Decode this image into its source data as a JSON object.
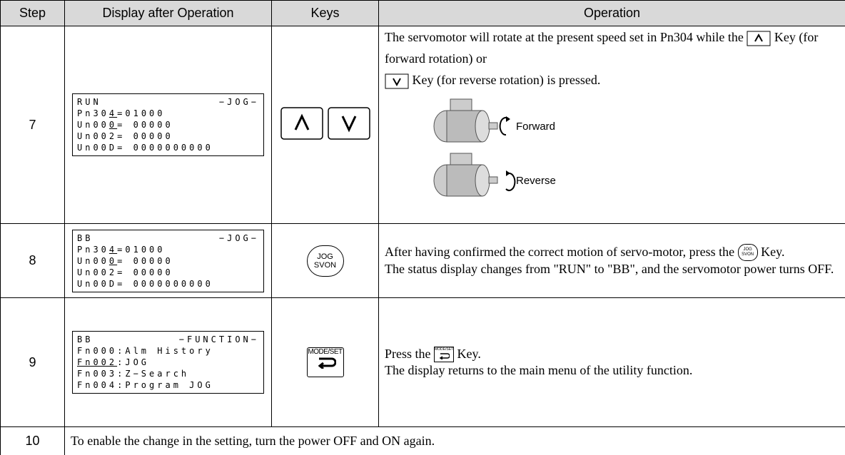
{
  "header": {
    "step": "Step",
    "display": "Display after Operation",
    "keys": "Keys",
    "operation": "Operation"
  },
  "rows": [
    {
      "step": "7",
      "display": {
        "status": "RUN",
        "mode": "−JOG−",
        "lines": [
          [
            "Pn30",
            {
              "u": "4"
            },
            "=01000"
          ],
          [
            "Un00",
            {
              "u": "0"
            },
            "= 00000"
          ],
          [
            "Un002= 00000"
          ],
          [
            "Un00D= 0000000000"
          ]
        ]
      },
      "operation": {
        "parts": [
          "The servomotor will rotate at the present speed set in Pn304 while the",
          "Key (for forward rotation) or",
          "Key (for reverse rotation) is pressed."
        ],
        "forward": "Forward",
        "reverse": "Reverse"
      }
    },
    {
      "step": "8",
      "display": {
        "status": "BB",
        "mode": "−JOG−",
        "lines": [
          [
            "Pn30",
            {
              "u": "4"
            },
            "=01000"
          ],
          [
            "Un00",
            {
              "u": "0"
            },
            "= 00000"
          ],
          [
            "Un002= 00000"
          ],
          [
            "Un00D= 0000000000"
          ]
        ]
      },
      "keys": {
        "top": "JOG",
        "bottom": "SVON"
      },
      "operation": {
        "parts": [
          "After having confirmed the correct motion of servo-motor, press the",
          "Key.",
          "The status display changes from \"RUN\" to \"BB\", and the servomotor power turns OFF."
        ]
      }
    },
    {
      "step": "9",
      "display": {
        "status": "BB",
        "mode": "−FUNCTION−",
        "lines": [
          [
            "Fn000:Alm History"
          ],
          [
            {
              "u": "Fn002"
            },
            ":JOG"
          ],
          [
            "Fn003:Z−Search"
          ],
          [
            "Fn004:Program JOG"
          ]
        ]
      },
      "keys": {
        "label": "MODE/SET"
      },
      "operation": {
        "parts": [
          "Press the",
          "Key.",
          "The display returns to the main menu of the utility function."
        ]
      }
    },
    {
      "step": "10",
      "text": "To enable the change in the setting, turn the power OFF and ON again."
    }
  ]
}
